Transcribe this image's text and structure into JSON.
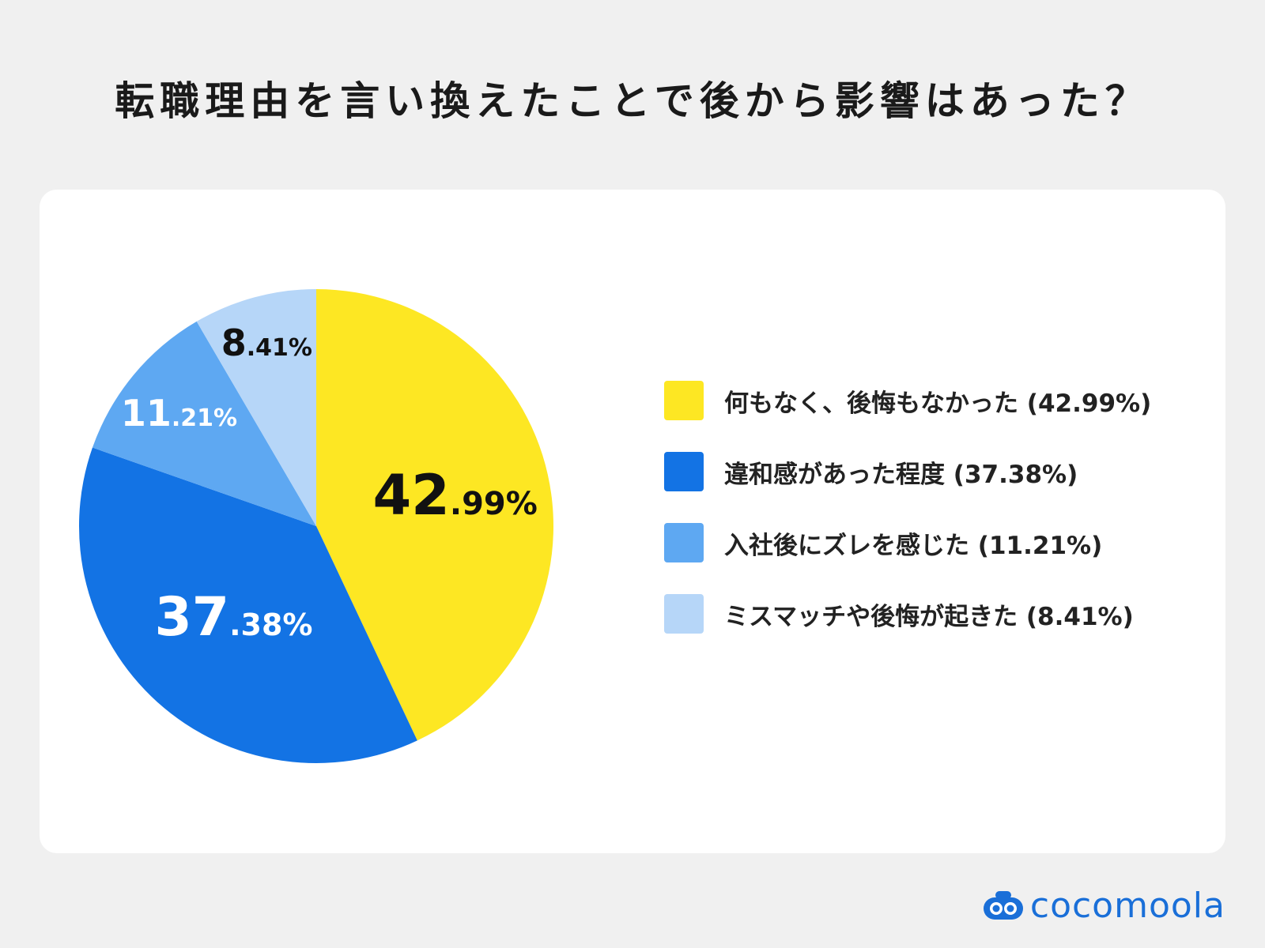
{
  "title": "転職理由を言い換えたことで後から影響はあった？",
  "chart_data": {
    "type": "pie",
    "title": "転職理由を言い換えたことで後から影響はあった？",
    "slices": [
      {
        "label": "何もなく、後悔もなかった",
        "value": 42.99,
        "value_text_big": "42",
        "value_text_small": ".99%",
        "legend": "何もなく、後悔もなかった (42.99%)",
        "color": "#fde723",
        "label_color": "#111111"
      },
      {
        "label": "違和感があった程度",
        "value": 37.38,
        "value_text_big": "37",
        "value_text_small": ".38%",
        "legend": "違和感があった程度 (37.38%)",
        "color": "#1373e4",
        "label_color": "#ffffff"
      },
      {
        "label": "入社後にズレを感じた",
        "value": 11.21,
        "value_text_big": "11",
        "value_text_small": ".21%",
        "legend": "入社後にズレを感じた (11.21%)",
        "color": "#5ea8f2",
        "label_color": "#ffffff"
      },
      {
        "label": "ミスマッチや後悔が起きた",
        "value": 8.41,
        "value_text_big": "8",
        "value_text_small": ".41%",
        "legend": "ミスマッチや後悔が起きた (8.41%)",
        "color": "#b6d6f8",
        "label_color": "#111111"
      }
    ],
    "start": "12 o'clock",
    "direction": "clockwise",
    "legend_position": "right"
  },
  "logo": {
    "text": "cocomoola",
    "color": "#1a6fd8"
  }
}
